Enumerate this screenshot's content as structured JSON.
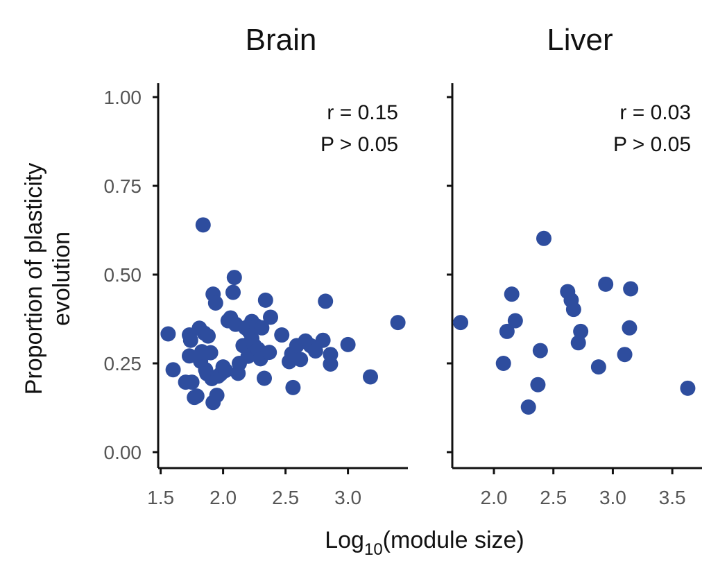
{
  "chart_data": {
    "type": "scatter",
    "ylabel_lines": [
      "Proportion of plasticity",
      "evolution"
    ],
    "xlabel": {
      "main": "Log",
      "sub": "10",
      "rest": "(module size)"
    },
    "ylim": [
      0,
      1
    ],
    "yticks": [
      0.0,
      0.25,
      0.5,
      0.75,
      1.0
    ],
    "ytick_labels": [
      "0.00",
      "0.25",
      "0.50",
      "0.75",
      "1.00"
    ],
    "point_color": "#2E4D9E",
    "grid": false,
    "panels": [
      {
        "title": "Brain",
        "xlim": [
          1.48,
          3.48
        ],
        "xticks": [
          1.5,
          2.0,
          2.5,
          3.0
        ],
        "xtick_labels": [
          "1.5",
          "2.0",
          "2.5",
          "3.0"
        ],
        "annotation": [
          "r = 0.15",
          "P > 0.05"
        ],
        "points": [
          [
            1.56,
            0.333
          ],
          [
            1.6,
            0.232
          ],
          [
            1.7,
            0.197
          ],
          [
            1.73,
            0.33
          ],
          [
            1.73,
            0.271
          ],
          [
            1.74,
            0.315
          ],
          [
            1.75,
            0.197
          ],
          [
            1.77,
            0.154
          ],
          [
            1.79,
            0.158
          ],
          [
            1.81,
            0.349
          ],
          [
            1.82,
            0.256
          ],
          [
            1.83,
            0.283
          ],
          [
            1.84,
            0.64
          ],
          [
            1.85,
            0.335
          ],
          [
            1.86,
            0.232
          ],
          [
            1.87,
            0.221
          ],
          [
            1.88,
            0.327
          ],
          [
            1.9,
            0.28
          ],
          [
            1.91,
            0.207
          ],
          [
            1.92,
            0.445
          ],
          [
            1.92,
            0.14
          ],
          [
            1.94,
            0.42
          ],
          [
            1.95,
            0.16
          ],
          [
            1.96,
            0.214
          ],
          [
            1.98,
            0.22
          ],
          [
            2.0,
            0.24
          ],
          [
            2.02,
            0.23
          ],
          [
            2.04,
            0.37
          ],
          [
            2.06,
            0.378
          ],
          [
            2.08,
            0.45
          ],
          [
            2.09,
            0.492
          ],
          [
            2.1,
            0.36
          ],
          [
            2.12,
            0.222
          ],
          [
            2.13,
            0.25
          ],
          [
            2.16,
            0.3
          ],
          [
            2.18,
            0.35
          ],
          [
            2.2,
            0.27
          ],
          [
            2.21,
            0.34
          ],
          [
            2.23,
            0.32
          ],
          [
            2.23,
            0.368
          ],
          [
            2.25,
            0.3
          ],
          [
            2.27,
            0.355
          ],
          [
            2.28,
            0.29
          ],
          [
            2.3,
            0.263
          ],
          [
            2.31,
            0.35
          ],
          [
            2.33,
            0.208
          ],
          [
            2.34,
            0.428
          ],
          [
            2.37,
            0.281
          ],
          [
            2.38,
            0.38
          ],
          [
            2.47,
            0.33
          ],
          [
            2.53,
            0.255
          ],
          [
            2.55,
            0.277
          ],
          [
            2.56,
            0.182
          ],
          [
            2.59,
            0.3
          ],
          [
            2.62,
            0.261
          ],
          [
            2.66,
            0.313
          ],
          [
            2.7,
            0.3
          ],
          [
            2.74,
            0.285
          ],
          [
            2.8,
            0.315
          ],
          [
            2.82,
            0.425
          ],
          [
            2.86,
            0.275
          ],
          [
            2.86,
            0.248
          ],
          [
            3.0,
            0.303
          ],
          [
            3.18,
            0.212
          ],
          [
            3.4,
            0.365
          ]
        ]
      },
      {
        "title": "Liver",
        "xlim": [
          1.65,
          3.75
        ],
        "xticks": [
          2.0,
          2.5,
          3.0,
          3.5
        ],
        "xtick_labels": [
          "2.0",
          "2.5",
          "3.0",
          "3.5"
        ],
        "annotation": [
          "r = 0.03",
          "P > 0.05"
        ],
        "points": [
          [
            1.72,
            0.365
          ],
          [
            2.08,
            0.25
          ],
          [
            2.11,
            0.34
          ],
          [
            2.15,
            0.445
          ],
          [
            2.18,
            0.37
          ],
          [
            2.29,
            0.127
          ],
          [
            2.37,
            0.19
          ],
          [
            2.39,
            0.286
          ],
          [
            2.42,
            0.602
          ],
          [
            2.62,
            0.452
          ],
          [
            2.65,
            0.428
          ],
          [
            2.67,
            0.402
          ],
          [
            2.71,
            0.308
          ],
          [
            2.73,
            0.34
          ],
          [
            2.88,
            0.24
          ],
          [
            2.94,
            0.473
          ],
          [
            3.1,
            0.275
          ],
          [
            3.14,
            0.35
          ],
          [
            3.15,
            0.46
          ],
          [
            3.63,
            0.18
          ]
        ]
      }
    ]
  }
}
